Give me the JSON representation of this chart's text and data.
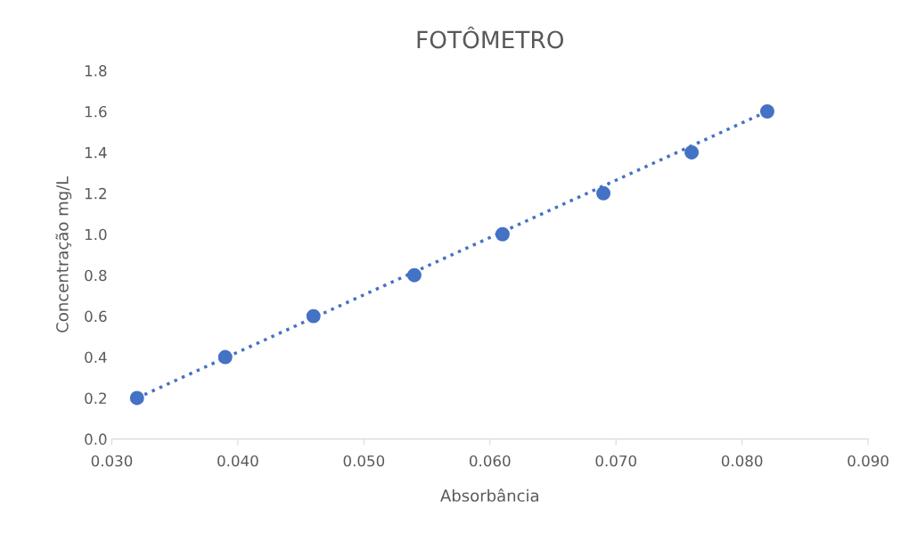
{
  "chart_data": {
    "type": "scatter",
    "title": "FOTÔMETRO",
    "xlabel": "Absorbância",
    "ylabel": "Concentração mg/L",
    "xlim": [
      0.03,
      0.09
    ],
    "xticks": [
      {
        "value": 0.03,
        "label": "0.030"
      },
      {
        "value": 0.04,
        "label": "0.040"
      },
      {
        "value": 0.05,
        "label": "0.050"
      },
      {
        "value": 0.06,
        "label": "0.060"
      },
      {
        "value": 0.07,
        "label": "0.070"
      },
      {
        "value": 0.08,
        "label": "0.080"
      },
      {
        "value": 0.09,
        "label": "0.090"
      }
    ],
    "ylim": [
      0,
      1.8
    ],
    "yticks": [
      {
        "value": 0,
        "label": "0.0"
      },
      {
        "value": 0.2,
        "label": "0.2"
      },
      {
        "value": 0.4,
        "label": "0.4"
      },
      {
        "value": 0.6,
        "label": "0.6"
      },
      {
        "value": 0.8,
        "label": "0.8"
      },
      {
        "value": 1.0,
        "label": "1.0"
      },
      {
        "value": 1.2,
        "label": "1.2"
      },
      {
        "value": 1.4,
        "label": "1.4"
      },
      {
        "value": 1.6,
        "label": "1.6"
      },
      {
        "value": 1.8,
        "label": "1.8"
      }
    ],
    "grid": false,
    "series": [
      {
        "color": "#4472c4",
        "marker": "circle",
        "x": [
          0.032,
          0.039,
          0.046,
          0.054,
          0.061,
          0.069,
          0.076,
          0.082
        ],
        "values": [
          0.2,
          0.4,
          0.6,
          0.8,
          1.0,
          1.2,
          1.4,
          1.6
        ]
      },
      {
        "type": "line",
        "color": "#4472c4",
        "line_style": "dotted",
        "marker": "none",
        "x": [
          0.032,
          0.082
        ],
        "values": [
          0.2,
          1.6
        ]
      }
    ]
  }
}
